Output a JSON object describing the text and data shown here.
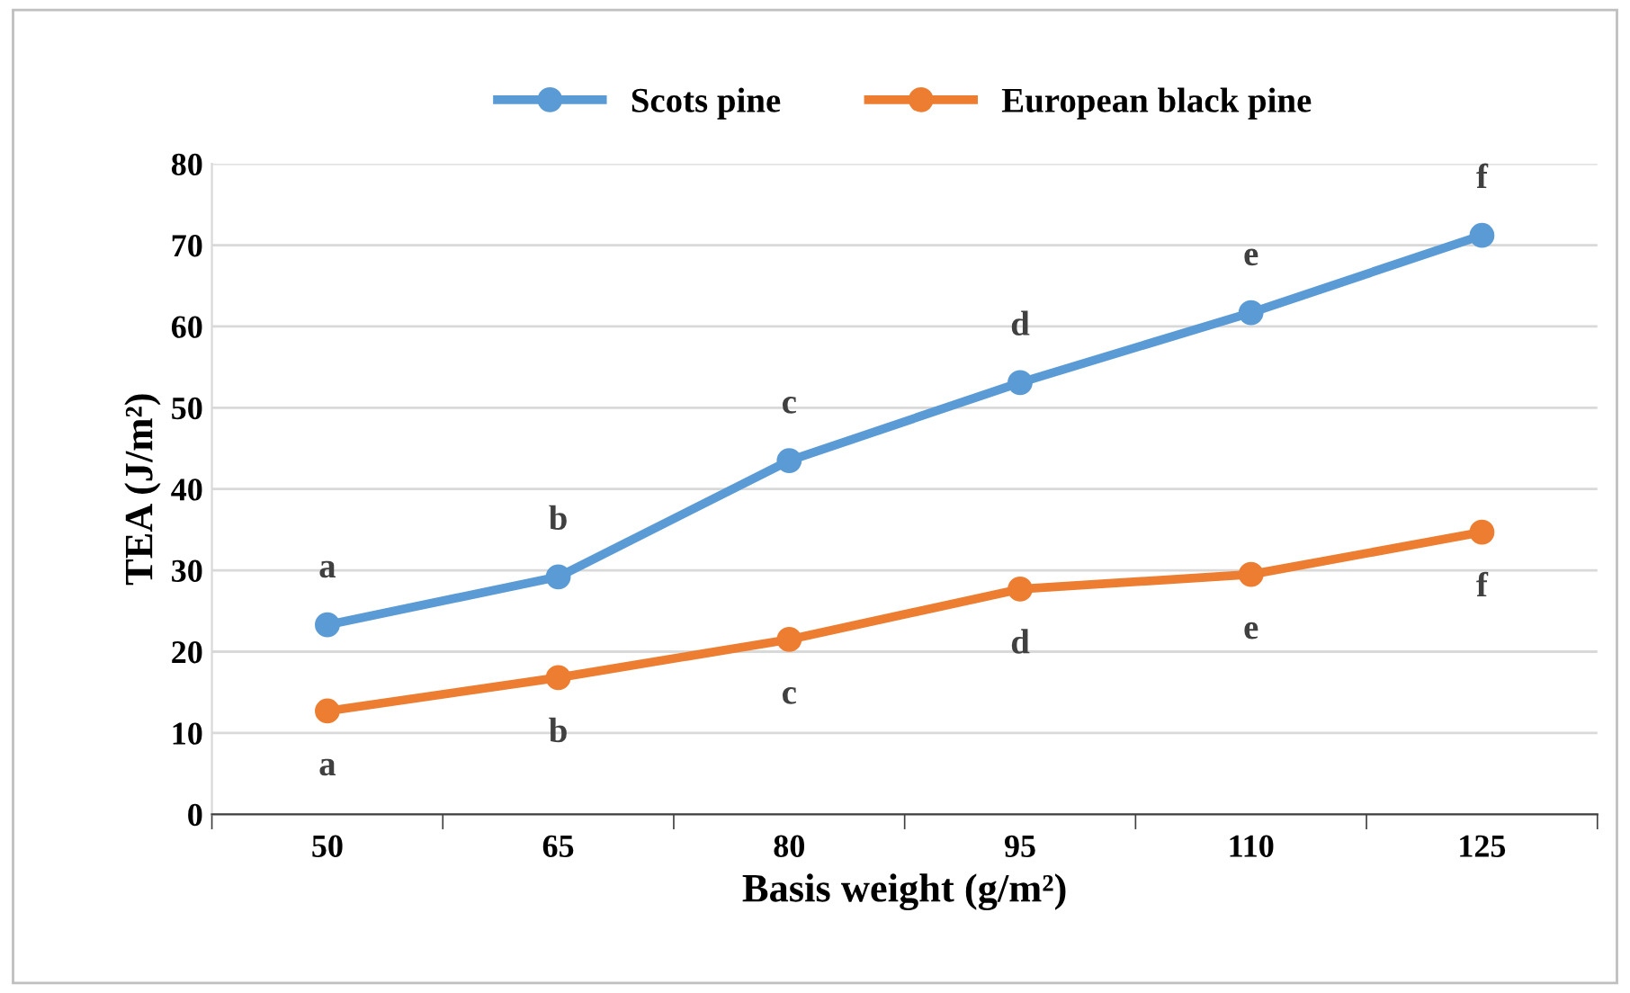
{
  "chart_data": {
    "type": "line",
    "xlabel": "Basis weight (g/m²)",
    "ylabel": "TEA (J/m²)",
    "categories": [
      "50",
      "65",
      "80",
      "95",
      "110",
      "125"
    ],
    "series": [
      {
        "name": "Scots pine",
        "color": "#5b9bd5",
        "values": [
          23.3,
          29.2,
          43.5,
          53.1,
          61.7,
          71.2
        ]
      },
      {
        "name": "European black pine",
        "color": "#ed7d31",
        "values": [
          12.7,
          16.8,
          21.5,
          27.7,
          29.5,
          34.7
        ]
      }
    ],
    "ylim": [
      0,
      80
    ],
    "yticks": [
      0,
      10,
      20,
      30,
      40,
      50,
      60,
      70,
      80
    ],
    "grid": "y",
    "legend": "top",
    "marker": "circle",
    "line_style": "solid",
    "annotations": [
      {
        "text": "a",
        "x": "50",
        "y": 23.3
      },
      {
        "text": "b",
        "x": "65",
        "y": 29.2
      },
      {
        "text": "c",
        "x": "80",
        "y": 43.5
      },
      {
        "text": "d",
        "x": "95",
        "y": 53.1
      },
      {
        "text": "e",
        "x": "110",
        "y": 61.7
      },
      {
        "text": "f",
        "x": "125",
        "y": 71.2
      },
      {
        "text": "a",
        "x": "50",
        "y": 12.7
      },
      {
        "text": "b",
        "x": "65",
        "y": 16.8
      },
      {
        "text": "c",
        "x": "80",
        "y": 21.5
      },
      {
        "text": "d",
        "x": "95",
        "y": 27.7
      },
      {
        "text": "e",
        "x": "110",
        "y": 29.5
      },
      {
        "text": "f",
        "x": "125",
        "y": 34.7
      }
    ]
  }
}
